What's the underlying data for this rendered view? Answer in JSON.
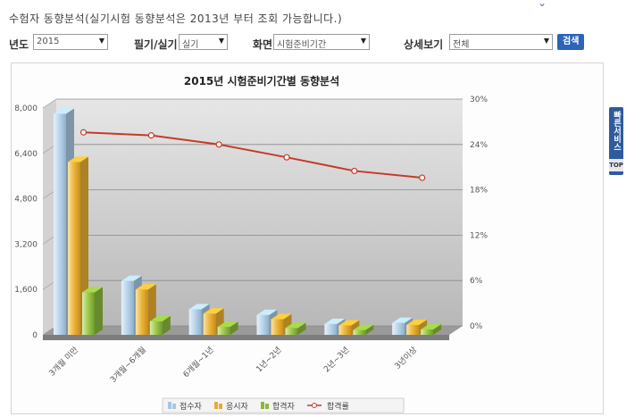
{
  "header": {
    "title": "수험자 동향분석(실기시험 동향분석은 2013년 부터 조회 가능합니다.)"
  },
  "filters": {
    "year": {
      "label": "년도",
      "value": "2015"
    },
    "exam_type": {
      "label": "필기/실기",
      "value": "실기"
    },
    "screen": {
      "label": "화면",
      "value": "시험준비기간"
    },
    "detail": {
      "label": "상세보기",
      "value": "전체"
    },
    "search_label": "검색"
  },
  "side_panel": {
    "tab_label": "빠른서비스",
    "chevron": "‹",
    "top_label": "TOP"
  },
  "colors": {
    "apply": "#a8c6de",
    "sit": "#e6ad30",
    "pass": "#8ab83d",
    "rate": "#c63a2a",
    "plot_bg": "#c8c8c8"
  },
  "chart_data": {
    "type": "bar",
    "title": "2015년 시험준비기간별 동향분석",
    "categories": [
      "3개월 미만",
      "3개월~6개월",
      "6개월~1년",
      "1년~2년",
      "2년~3년",
      "3년이상"
    ],
    "series": [
      {
        "name": "접수자",
        "type": "bar",
        "axis": "left",
        "values": [
          7800,
          1900,
          900,
          700,
          380,
          420
        ]
      },
      {
        "name": "응시자",
        "type": "bar",
        "axis": "left",
        "values": [
          6100,
          1600,
          750,
          550,
          330,
          350
        ]
      },
      {
        "name": "합격자",
        "type": "bar",
        "axis": "left",
        "values": [
          1500,
          480,
          280,
          240,
          170,
          190
        ]
      },
      {
        "name": "합격률",
        "type": "line",
        "axis": "right",
        "values": [
          25.6,
          25.2,
          24.0,
          22.3,
          20.5,
          19.6
        ]
      }
    ],
    "y_left": {
      "ticks": [
        "0",
        "1,600",
        "3,200",
        "4,800",
        "6,400",
        "8,000"
      ],
      "min": 0,
      "max": 8000
    },
    "y_right": {
      "ticks": [
        "0%",
        "6%",
        "12%",
        "18%",
        "24%",
        "30%"
      ],
      "min": 0,
      "max": 30
    },
    "grid": true,
    "legend_position": "bottom"
  }
}
